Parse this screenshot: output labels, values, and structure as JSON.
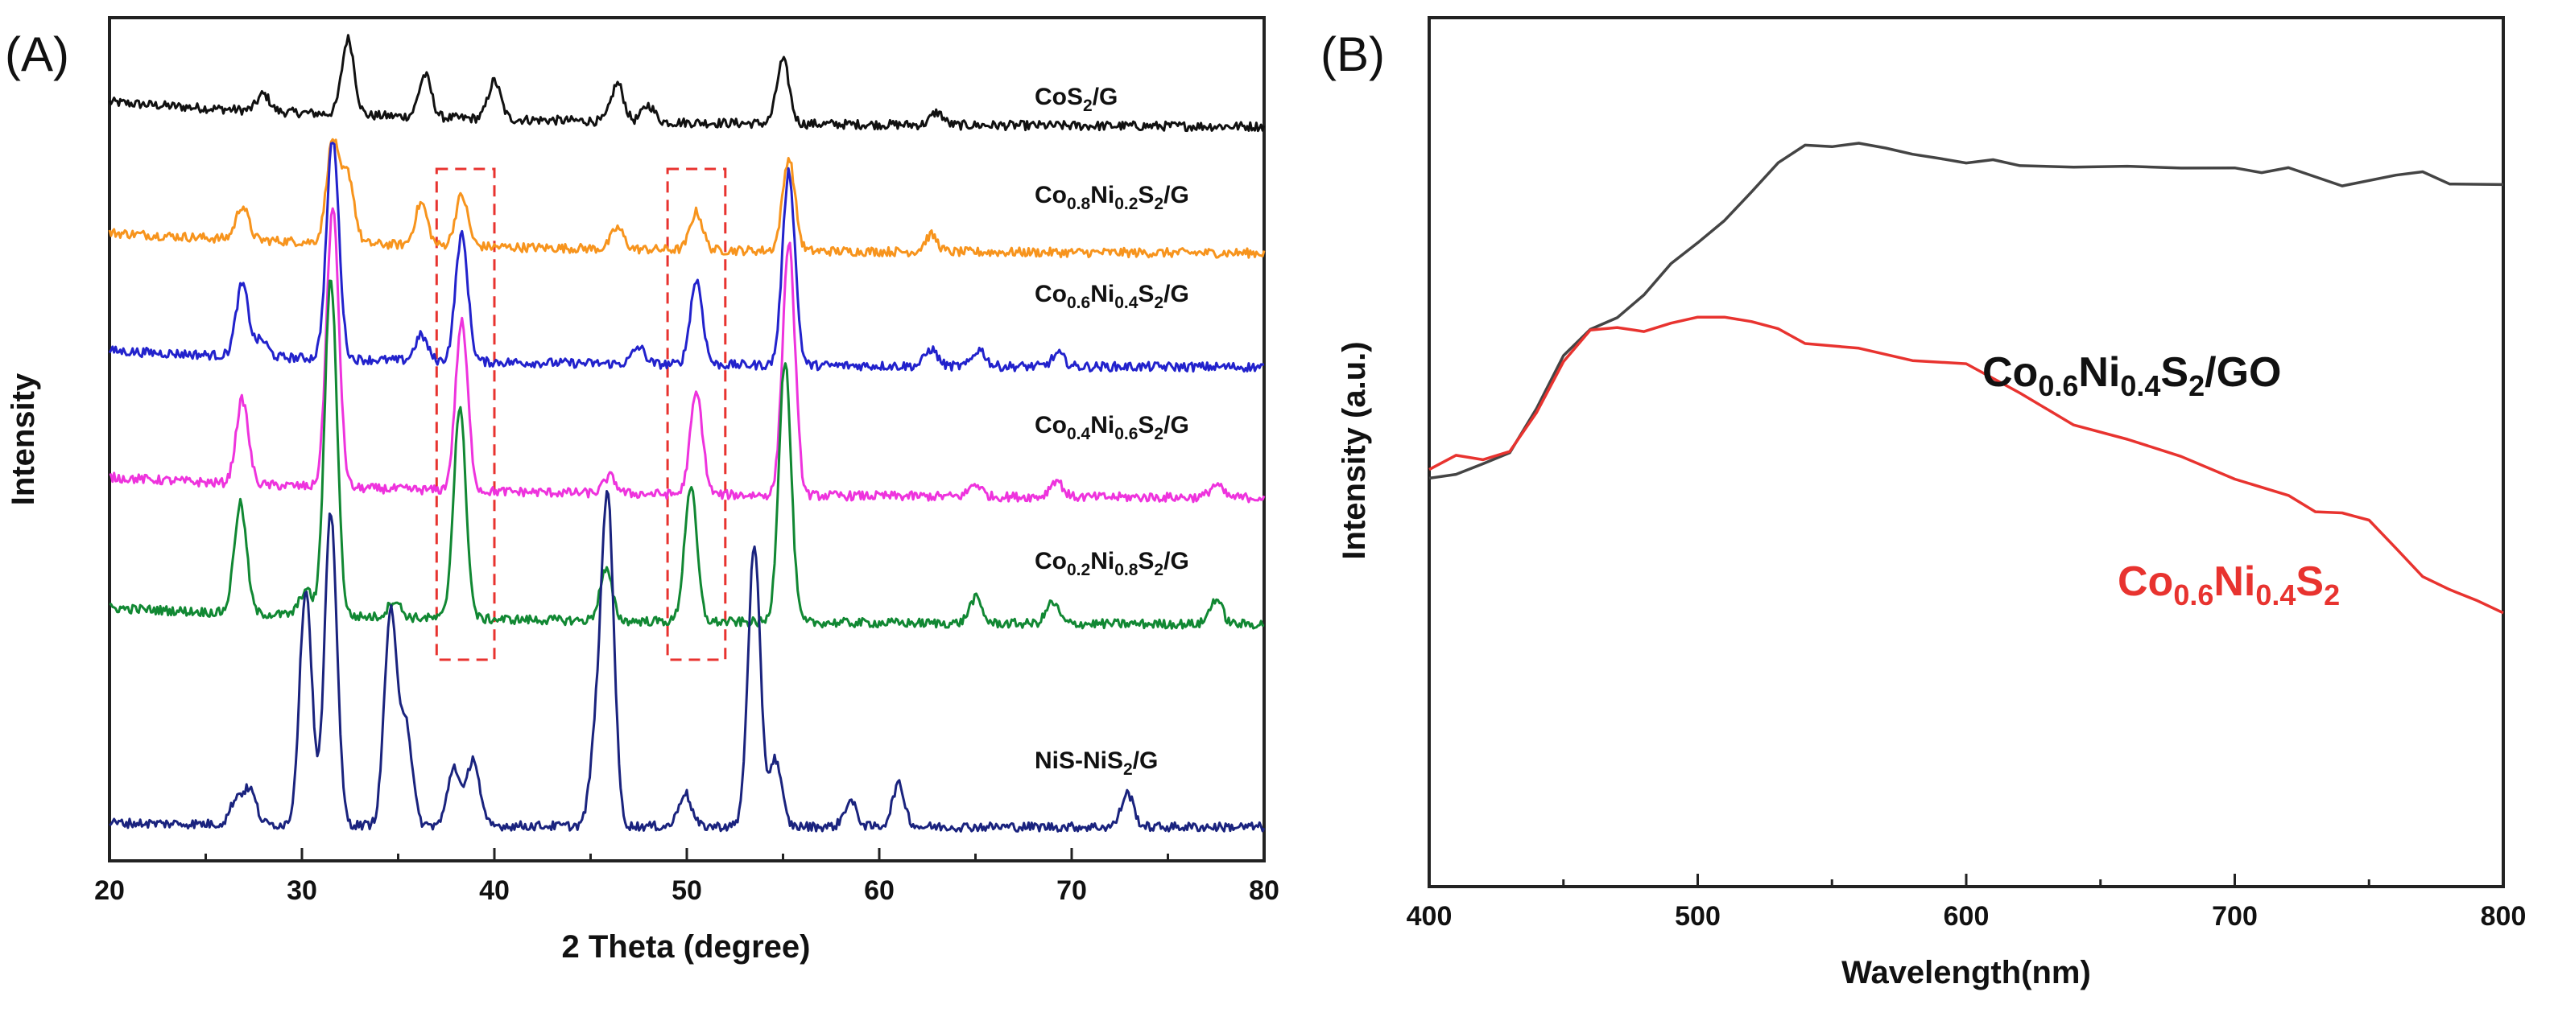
{
  "panels": [
    {
      "label": "(A)",
      "chart_data": {
        "type": "line",
        "xlabel": "2 Theta (degree)",
        "ylabel": "Intensity",
        "xlim": [
          20,
          80
        ],
        "xticks": [
          "20",
          "30",
          "40",
          "50",
          "60",
          "70",
          "80"
        ],
        "y_tick_labels": false,
        "stacked_offset_curves": true,
        "highlight_boxes": [
          {
            "x_range": [
              37,
              40
            ],
            "color": "#e8332f",
            "style": "dashed"
          },
          {
            "x_range": [
              49,
              52
            ],
            "color": "#e8332f",
            "style": "dashed"
          }
        ],
        "series": [
          {
            "name": "CoS2/G",
            "label_main": "CoS",
            "label_sub": "2",
            "label_tail": "/G",
            "color": "#111111",
            "baseline": 0.87,
            "base_slope": 0.06,
            "peaks": [
              [
                28.0,
                0.02
              ],
              [
                32.4,
                0.09
              ],
              [
                36.4,
                0.05
              ],
              [
                40.0,
                0.045
              ],
              [
                46.4,
                0.045
              ],
              [
                48.0,
                0.02
              ],
              [
                55.0,
                0.075
              ],
              [
                63.0,
                0.015
              ]
            ]
          },
          {
            "name": "Co0.8Ni0.2S2/G",
            "label_parts": [
              "Co",
              "0.8",
              "Ni",
              "0.2",
              "S",
              "2",
              "/G"
            ],
            "color": "#f7941d",
            "baseline": 0.72,
            "base_slope": 0.05,
            "peaks": [
              [
                26.9,
                0.04
              ],
              [
                31.6,
                0.12
              ],
              [
                32.4,
                0.08
              ],
              [
                36.2,
                0.05
              ],
              [
                38.3,
                0.06
              ],
              [
                46.4,
                0.025
              ],
              [
                50.5,
                0.045
              ],
              [
                55.3,
                0.11
              ],
              [
                62.7,
                0.02
              ]
            ]
          },
          {
            "name": "Co0.6Ni0.4S2/G",
            "label_parts": [
              "Co",
              "0.6",
              "Ni",
              "0.4",
              "S",
              "2",
              "/G"
            ],
            "color": "#2222cc",
            "baseline": 0.585,
            "base_slope": 0.04,
            "peaks": [
              [
                26.9,
                0.085
              ],
              [
                27.9,
                0.02
              ],
              [
                31.6,
                0.26
              ],
              [
                36.2,
                0.03
              ],
              [
                38.3,
                0.15
              ],
              [
                47.5,
                0.02
              ],
              [
                50.5,
                0.1
              ],
              [
                55.3,
                0.23
              ],
              [
                62.7,
                0.02
              ],
              [
                65.2,
                0.02
              ],
              [
                69.3,
                0.015
              ]
            ]
          },
          {
            "name": "Co0.4Ni0.6S2/G",
            "label_parts": [
              "Co",
              "0.4",
              "Ni",
              "0.6",
              "S",
              "2",
              "/G"
            ],
            "color": "#ee33dd",
            "baseline": 0.43,
            "base_slope": 0.05,
            "peaks": [
              [
                26.9,
                0.1
              ],
              [
                31.6,
                0.33
              ],
              [
                38.3,
                0.2
              ],
              [
                46.0,
                0.02
              ],
              [
                50.5,
                0.12
              ],
              [
                55.3,
                0.3
              ],
              [
                65.0,
                0.015
              ],
              [
                69.2,
                0.02
              ],
              [
                77.5,
                0.015
              ]
            ]
          },
          {
            "name": "Co0.2Ni0.8S2/G",
            "label_parts": [
              "Co",
              "0.2",
              "Ni",
              "0.8",
              "S",
              "2",
              "/G"
            ],
            "color": "#118833",
            "baseline": 0.28,
            "base_slope": 0.04,
            "peaks": [
              [
                26.8,
                0.13
              ],
              [
                30.2,
                0.03
              ],
              [
                31.5,
                0.4
              ],
              [
                34.8,
                0.02
              ],
              [
                38.2,
                0.25
              ],
              [
                45.8,
                0.06
              ],
              [
                50.2,
                0.16
              ],
              [
                55.1,
                0.31
              ],
              [
                65.0,
                0.03
              ],
              [
                69.0,
                0.025
              ],
              [
                77.5,
                0.03
              ]
            ]
          },
          {
            "name": "NiS-NiS2/G",
            "label_main": "NiS-NiS",
            "label_sub": "2",
            "label_tail": "/G",
            "color": "#1a237e",
            "baseline": 0.04,
            "base_slope": 0.01,
            "peaks": [
              [
                26.6,
                0.03
              ],
              [
                27.3,
                0.04
              ],
              [
                30.2,
                0.28
              ],
              [
                31.5,
                0.37
              ],
              [
                34.6,
                0.25
              ],
              [
                35.4,
                0.12
              ],
              [
                37.9,
                0.07
              ],
              [
                38.9,
                0.08
              ],
              [
                45.3,
                0.1
              ],
              [
                45.9,
                0.38
              ],
              [
                49.9,
                0.04
              ],
              [
                53.5,
                0.33
              ],
              [
                54.6,
                0.08
              ],
              [
                58.5,
                0.03
              ],
              [
                61.0,
                0.05
              ],
              [
                72.9,
                0.04
              ]
            ]
          }
        ]
      }
    },
    {
      "label": "(B)",
      "chart_data": {
        "type": "line",
        "xlabel": "Wavelength(nm)",
        "ylabel": "Intensity (a.u.)",
        "xlim": [
          400,
          800
        ],
        "ylim": [
          0,
          1
        ],
        "xticks": [
          "400",
          "500",
          "600",
          "700",
          "800"
        ],
        "y_tick_labels": false,
        "series": [
          {
            "name": "Co0.6Ni0.4S2/GO",
            "label_parts": [
              "Co",
              "0.6",
              "Ni",
              "0.4",
              "S",
              "2",
              "/GO"
            ],
            "color": "#444444",
            "x": [
              400,
              410,
              420,
              430,
              440,
              450,
              460,
              470,
              480,
              490,
              500,
              510,
              520,
              530,
              540,
              550,
              560,
              570,
              580,
              590,
              600,
              610,
              620,
              640,
              660,
              680,
              700,
              710,
              720,
              740,
              760,
              770,
              780,
              800
            ],
            "y": [
              0.47,
              0.475,
              0.485,
              0.5,
              0.55,
              0.61,
              0.64,
              0.655,
              0.68,
              0.715,
              0.74,
              0.765,
              0.8,
              0.835,
              0.855,
              0.853,
              0.855,
              0.852,
              0.843,
              0.838,
              0.833,
              0.836,
              0.828,
              0.828,
              0.83,
              0.828,
              0.826,
              0.822,
              0.826,
              0.806,
              0.818,
              0.823,
              0.81,
              0.808
            ]
          },
          {
            "name": "Co0.6Ni0.4S2",
            "label_parts": [
              "Co",
              "0.6",
              "Ni",
              "0.4",
              "S",
              "2",
              ""
            ],
            "color": "#e8332f",
            "x": [
              400,
              410,
              420,
              430,
              440,
              450,
              460,
              470,
              480,
              490,
              500,
              510,
              520,
              530,
              540,
              560,
              580,
              600,
              620,
              640,
              660,
              680,
              700,
              720,
              730,
              740,
              750,
              760,
              770,
              780,
              790,
              800
            ],
            "y": [
              0.48,
              0.495,
              0.49,
              0.5,
              0.545,
              0.605,
              0.64,
              0.645,
              0.64,
              0.648,
              0.655,
              0.657,
              0.652,
              0.64,
              0.625,
              0.62,
              0.605,
              0.6,
              0.57,
              0.53,
              0.515,
              0.495,
              0.47,
              0.45,
              0.43,
              0.43,
              0.42,
              0.39,
              0.355,
              0.34,
              0.33,
              0.315
            ]
          }
        ]
      }
    }
  ]
}
